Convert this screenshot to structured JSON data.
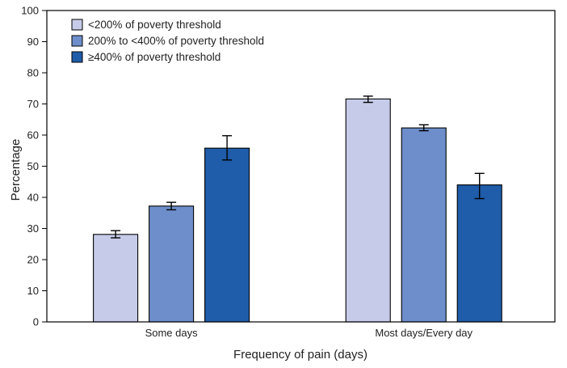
{
  "chart_data": {
    "type": "bar",
    "title": "",
    "xlabel": "Frequency of pain (days)",
    "ylabel": "Percentage",
    "ylim": [
      0,
      100
    ],
    "yticks": [
      0,
      10,
      20,
      30,
      40,
      50,
      60,
      70,
      80,
      90,
      100
    ],
    "grid": false,
    "legend_position": "top-left",
    "categories": [
      "Some days",
      "Most days/Every day"
    ],
    "series": [
      {
        "name": "<200% of poverty threshold",
        "color": "#c5cbe8",
        "values": [
          28.1,
          71.6
        ],
        "ci_low": [
          27.0,
          70.5
        ],
        "ci_high": [
          29.3,
          72.5
        ]
      },
      {
        "name": "200% to <400% of poverty threshold",
        "color": "#6d8ecb",
        "values": [
          37.2,
          62.3
        ],
        "ci_low": [
          36.0,
          61.4
        ],
        "ci_high": [
          38.4,
          63.3
        ]
      },
      {
        "name": "≥400% of poverty threshold",
        "color": "#1f5ca9",
        "values": [
          55.8,
          44.0
        ],
        "ci_low": [
          52.0,
          39.6
        ],
        "ci_high": [
          59.8,
          47.7
        ]
      }
    ]
  }
}
